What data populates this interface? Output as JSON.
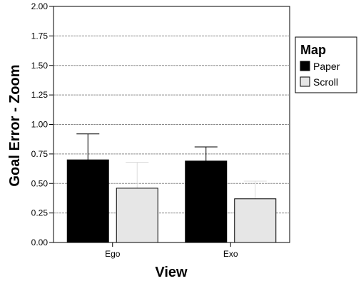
{
  "chart_data": {
    "type": "bar",
    "xlabel": "View",
    "ylabel": "Goal Error - Zoom",
    "categories": [
      "Ego",
      "Exo"
    ],
    "ylim": [
      0,
      2
    ],
    "yticks": [
      "0.00",
      "0.25",
      "0.50",
      "0.75",
      "1.00",
      "1.25",
      "1.50",
      "1.75",
      "2.00"
    ],
    "grid": "horizontal dashed",
    "legend": {
      "title": "Map",
      "position": "right"
    },
    "series": [
      {
        "name": "Paper",
        "color": "#000000",
        "values": [
          0.7,
          0.69
        ],
        "error_upper": [
          0.92,
          0.81
        ]
      },
      {
        "name": "Scroll",
        "color": "#e6e6e6",
        "values": [
          0.46,
          0.37
        ],
        "error_upper": [
          0.68,
          0.52
        ]
      }
    ]
  }
}
